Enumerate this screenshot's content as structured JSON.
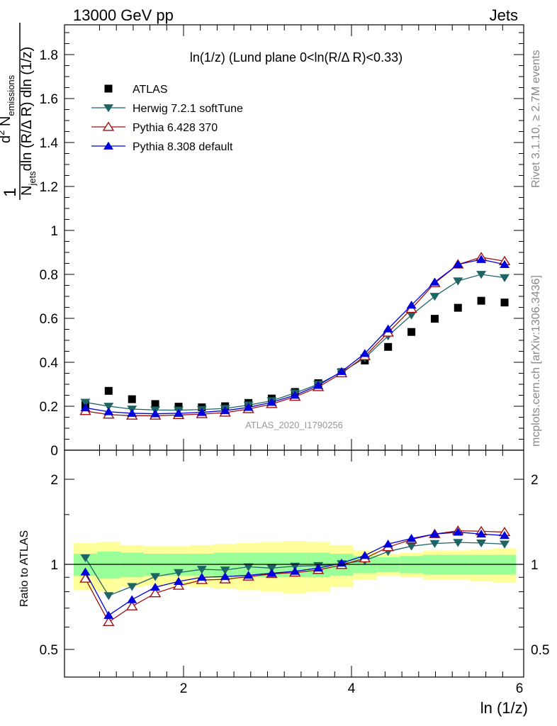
{
  "header": {
    "left": "13000 GeV pp",
    "right": "Jets"
  },
  "side_texts": {
    "rivet": "Rivet 3.1.10, ≥ 2.7M events",
    "mcplots": "mcplots.cern.ch [arXiv:1306.3436]"
  },
  "chart_data": [
    {
      "type": "scatter",
      "title": "ln(1/z) (Lund plane 0<ln(R/Δ R)<0.33)",
      "watermark": "ATLAS_2020_I1790256",
      "xlabel": "ln (1/z)",
      "ylabel": "1/N_jets dln (R/Δ R) dln (1/z) d² N_emissions",
      "ylim": [
        0,
        2.0
      ],
      "xlim": [
        0.693,
        6.0
      ],
      "yticks": [
        "0",
        "0.2",
        "0.4",
        "0.6",
        "0.8",
        "1",
        "1.2",
        "1.4",
        "1.6",
        "1.8"
      ],
      "x": [
        0.831,
        1.108,
        1.386,
        1.663,
        1.941,
        2.218,
        2.495,
        2.773,
        3.05,
        3.327,
        3.604,
        3.882,
        4.159,
        4.436,
        4.714,
        4.991,
        5.268,
        5.545,
        5.823
      ],
      "legend_position": "top-left",
      "series": [
        {
          "name": "ATLAS",
          "marker": "square",
          "color": "#000000",
          "values": [
            0.205,
            0.27,
            0.232,
            0.21,
            0.198,
            0.195,
            0.2,
            0.215,
            0.235,
            0.265,
            0.305,
            0.355,
            0.408,
            0.47,
            0.538,
            0.598,
            0.648,
            0.68,
            0.672
          ]
        },
        {
          "name": "Herwig 7.2.1 softTune",
          "marker": "triangle-down",
          "color": "#1e6464",
          "values": [
            0.218,
            0.2,
            0.187,
            0.183,
            0.182,
            0.185,
            0.19,
            0.205,
            0.225,
            0.26,
            0.3,
            0.355,
            0.42,
            0.52,
            0.615,
            0.7,
            0.77,
            0.8,
            0.785
          ]
        },
        {
          "name": "Pythia 6.428 370",
          "marker": "triangle-up-open",
          "color": "#a01010",
          "values": [
            0.178,
            0.162,
            0.157,
            0.157,
            0.16,
            0.164,
            0.171,
            0.187,
            0.21,
            0.243,
            0.287,
            0.35,
            0.428,
            0.535,
            0.643,
            0.76,
            0.845,
            0.878,
            0.86
          ]
        },
        {
          "name": "Pythia 8.308 default",
          "marker": "triangle-up",
          "color": "#0000dd",
          "values": [
            0.193,
            0.175,
            0.168,
            0.166,
            0.168,
            0.172,
            0.18,
            0.195,
            0.218,
            0.25,
            0.295,
            0.358,
            0.44,
            0.552,
            0.66,
            0.765,
            0.845,
            0.868,
            0.845
          ]
        }
      ]
    },
    {
      "type": "line",
      "ylabel": "Ratio to ATLAS",
      "xlabel": "ln (1/z)",
      "ylim": [
        0.38,
        2.35
      ],
      "yticks": [
        "0.5",
        "1",
        "2"
      ],
      "xticks": [
        "2",
        "4",
        "6"
      ],
      "x": [
        0.831,
        1.108,
        1.386,
        1.663,
        1.941,
        2.218,
        2.495,
        2.773,
        3.05,
        3.327,
        3.604,
        3.882,
        4.159,
        4.436,
        4.714,
        4.991,
        5.268,
        5.545,
        5.823
      ],
      "bands": {
        "yellow_half_width": [
          0.19,
          0.2,
          0.17,
          0.16,
          0.16,
          0.17,
          0.18,
          0.19,
          0.2,
          0.21,
          0.2,
          0.17,
          0.12,
          0.09,
          0.1,
          0.12,
          0.12,
          0.13,
          0.14
        ],
        "green_half_width": [
          0.09,
          0.11,
          0.1,
          0.09,
          0.09,
          0.09,
          0.1,
          0.1,
          0.1,
          0.1,
          0.1,
          0.09,
          0.07,
          0.06,
          0.07,
          0.08,
          0.08,
          0.08,
          0.08
        ]
      },
      "series": [
        {
          "name": "Herwig 7.2.1 softTune",
          "color": "#1e6464",
          "values": [
            1.055,
            0.775,
            0.835,
            0.905,
            0.935,
            0.96,
            0.955,
            0.98,
            0.97,
            0.985,
            0.99,
            1.005,
            1.03,
            1.11,
            1.16,
            1.185,
            1.195,
            1.19,
            1.18
          ]
        },
        {
          "name": "Pythia 6.428 370",
          "color": "#a01010",
          "values": [
            0.89,
            0.625,
            0.71,
            0.79,
            0.84,
            0.88,
            0.885,
            0.905,
            0.925,
            0.935,
            0.955,
            0.995,
            1.05,
            1.15,
            1.225,
            1.28,
            1.315,
            1.31,
            1.3
          ]
        },
        {
          "name": "Pythia 8.308 default",
          "color": "#0000dd",
          "values": [
            0.94,
            0.66,
            0.75,
            0.83,
            0.87,
            0.9,
            0.905,
            0.915,
            0.93,
            0.945,
            0.97,
            1.01,
            1.075,
            1.18,
            1.235,
            1.28,
            1.3,
            1.28,
            1.265
          ]
        }
      ]
    }
  ]
}
